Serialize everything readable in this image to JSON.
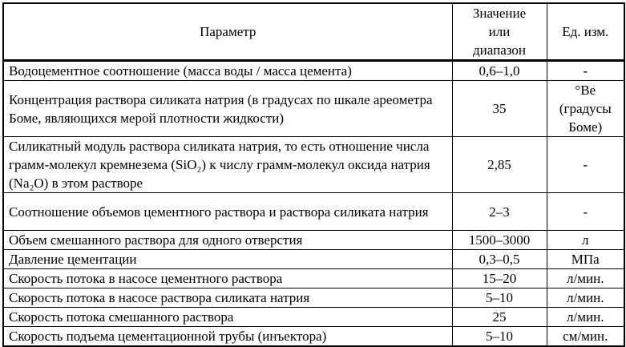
{
  "page": {
    "background": "#ffffff",
    "text_color": "#000000",
    "border_color": "#000000"
  },
  "table": {
    "columns": {
      "parameter": "Параметр",
      "value": "Значение\nили\nдиапазон",
      "unit": "Ед. изм."
    },
    "rows": [
      {
        "param": "Водоцементное соотношение (масса воды / масса цемента)",
        "value": "0,6–1,0",
        "unit": "-"
      },
      {
        "param": "Концентрация раствора силиката натрия (в градусах по шкале ареометра Боме, являющихся мерой плотности жидкости)",
        "value": "35",
        "unit": "°Ве\n(градусы\nБоме)"
      },
      {
        "param": "Силикатный модуль раствора силиката натрия, то есть отношение числа грамм-молекул кремнезема (SiO₂) к числу грамм-молекул оксида натрия (Na₂O) в этом растворе",
        "value": "2,85",
        "unit": "-"
      },
      {
        "param": "Соотношение объемов цементного раствора и раствора силиката натрия",
        "value": "2–3",
        "unit": "-"
      },
      {
        "param": "Объем смешанного раствора для одного отверстия",
        "value": "1500–3000",
        "unit": "л"
      },
      {
        "param": "Давление цементации",
        "value": "0,3–0,5",
        "unit": "МПа"
      },
      {
        "param": "Скорость потока в насосе цементного раствора",
        "value": "15–20",
        "unit": "л/мин."
      },
      {
        "param": "Скорость потока в насосе раствора силиката натрия",
        "value": "5–10",
        "unit": "л/мин."
      },
      {
        "param": "Скорость потока смешанного раствора",
        "value": "25",
        "unit": "л/мин."
      },
      {
        "param": "Скорость подъема цементационной трубы (инъектора)",
        "value": "5–10",
        "unit": "см/мин."
      }
    ]
  }
}
